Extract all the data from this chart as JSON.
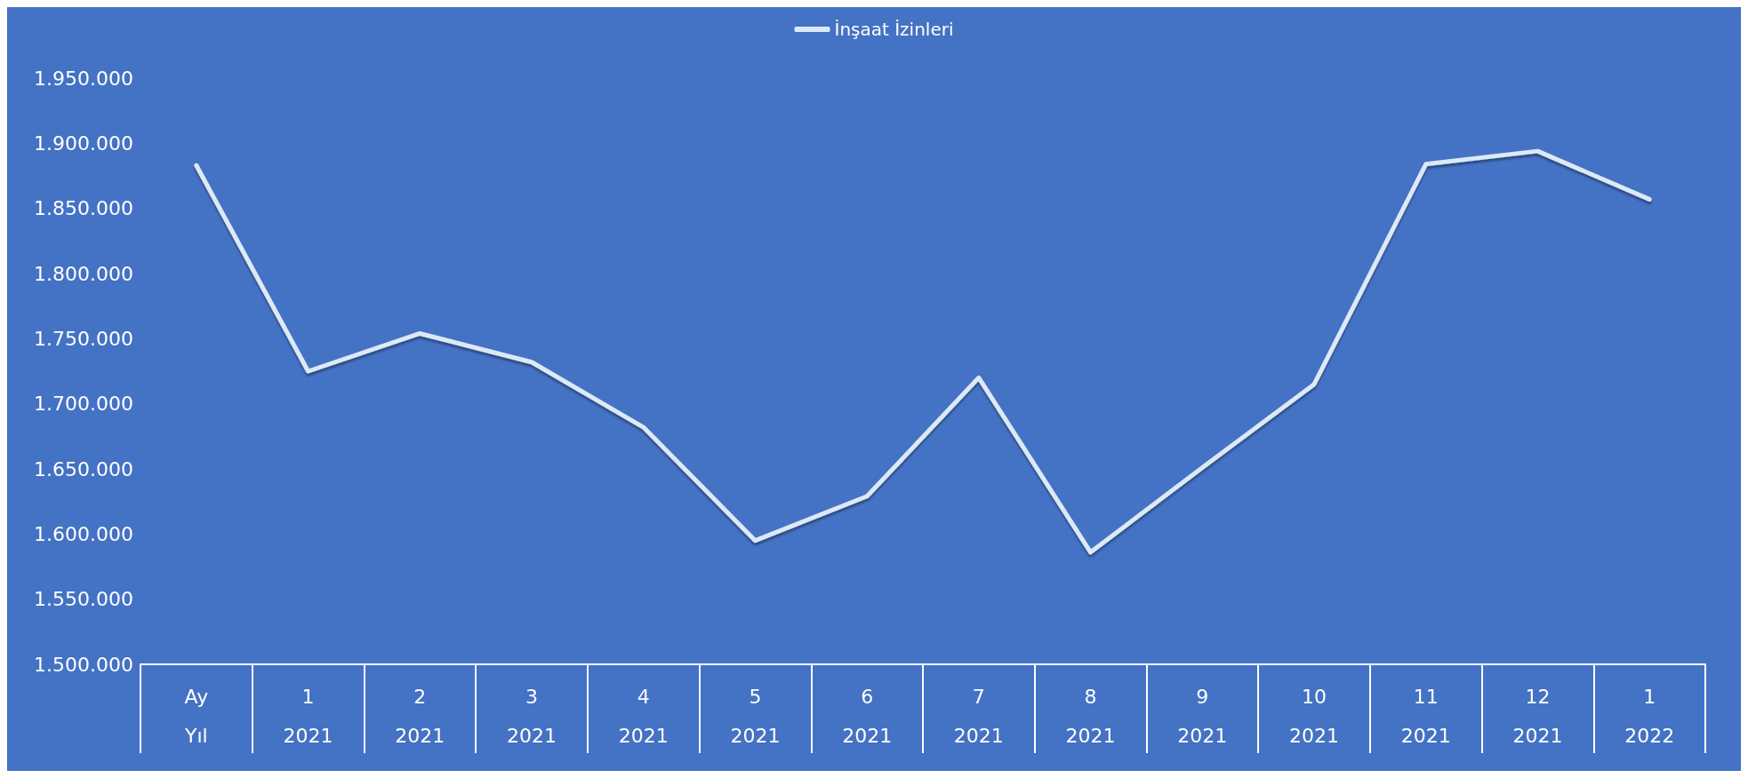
{
  "chart_data": {
    "type": "line",
    "categories": [
      "Ay\nYıl",
      "1\n2021",
      "2\n2021",
      "3\n2021",
      "4\n2021",
      "5\n2021",
      "6\n2021",
      "7\n2021",
      "8\n2021",
      "9\n2021",
      "10\n2021",
      "11\n2021",
      "12\n2021",
      "1\n2022"
    ],
    "series": [
      {
        "name": "İnşaat İzinleri",
        "color": "#dce9f7",
        "values": [
          1883000,
          1725000,
          1754000,
          1732000,
          1682000,
          1595000,
          1629000,
          1720000,
          1586000,
          1651000,
          1715000,
          1884000,
          1894000,
          1857000
        ]
      }
    ],
    "ylim": [
      1500000,
      1950000
    ],
    "yticks": [
      {
        "value": 1500000,
        "label": "1.500.000"
      },
      {
        "value": 1550000,
        "label": "1.550.000"
      },
      {
        "value": 1600000,
        "label": "1.600.000"
      },
      {
        "value": 1650000,
        "label": "1.650.000"
      },
      {
        "value": 1700000,
        "label": "1.700.000"
      },
      {
        "value": 1750000,
        "label": "1.750.000"
      },
      {
        "value": 1800000,
        "label": "1.800.000"
      },
      {
        "value": 1850000,
        "label": "1.850.000"
      },
      {
        "value": 1900000,
        "label": "1.900.000"
      },
      {
        "value": 1950000,
        "label": "1.950.000"
      }
    ],
    "grid": false,
    "legend": "top",
    "marker": "none",
    "line_style": "solid"
  }
}
